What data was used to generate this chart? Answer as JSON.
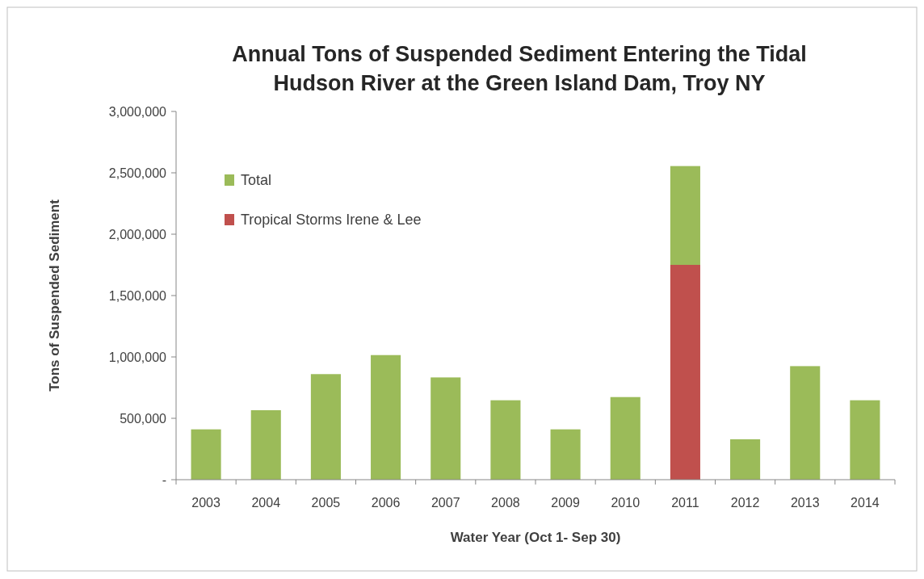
{
  "chart_data": {
    "type": "bar",
    "title": "Annual Tons of Suspended Sediment Entering the Tidal Hudson River at the Green Island Dam, Troy NY",
    "xlabel": "Water Year (Oct 1- Sep 30)",
    "ylabel": "Tons of Suspended Sediment",
    "categories": [
      "2003",
      "2004",
      "2005",
      "2006",
      "2007",
      "2008",
      "2009",
      "2010",
      "2011",
      "2012",
      "2013",
      "2014"
    ],
    "stacked": true,
    "series": [
      {
        "name": "Tropical Storms Irene & Lee",
        "color": "#c0504d",
        "values": [
          null,
          null,
          null,
          null,
          null,
          null,
          null,
          null,
          1750000,
          null,
          null,
          null
        ]
      },
      {
        "name": "Total",
        "color": "#9bbb59",
        "values": [
          410000,
          566000,
          860000,
          1015000,
          833000,
          647000,
          410000,
          673000,
          805000,
          329000,
          925000,
          647000
        ]
      }
    ],
    "ylim": [
      0,
      3000000
    ],
    "yticks": [
      {
        "value": 0,
        "label": "-"
      },
      {
        "value": 500000,
        "label": "500,000"
      },
      {
        "value": 1000000,
        "label": "1,000,000"
      },
      {
        "value": 1500000,
        "label": "1,500,000"
      },
      {
        "value": 2000000,
        "label": "2,000,000"
      },
      {
        "value": 2500000,
        "label": "2,500,000"
      },
      {
        "value": 3000000,
        "label": "3,000,000"
      }
    ],
    "legend": "top left"
  }
}
